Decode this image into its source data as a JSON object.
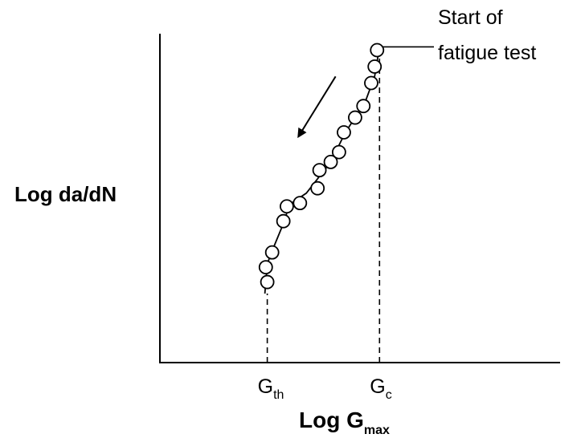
{
  "chart_data": {
    "type": "scatter",
    "ylabel": "Log da/dN",
    "xlabel": {
      "base": "Log G",
      "sub": "max"
    },
    "x_ticks": [
      {
        "base": "G",
        "sub": "th",
        "x": 2.2
      },
      {
        "base": "G",
        "sub": "c",
        "x": 4.5
      }
    ],
    "annotation": {
      "lines": [
        "Start of",
        "fatigue test"
      ],
      "points_to": [
        4.5,
        9.6
      ]
    },
    "arrow": {
      "from": [
        3.6,
        8.7
      ],
      "to": [
        2.85,
        6.9
      ]
    },
    "xlim": [
      0,
      8.2
    ],
    "ylim": [
      0,
      10
    ],
    "points": [
      {
        "x": 2.2,
        "y": 2.45
      },
      {
        "x": 2.17,
        "y": 2.9
      },
      {
        "x": 2.3,
        "y": 3.35
      },
      {
        "x": 2.53,
        "y": 4.3
      },
      {
        "x": 2.6,
        "y": 4.75
      },
      {
        "x": 2.87,
        "y": 4.85
      },
      {
        "x": 3.23,
        "y": 5.3
      },
      {
        "x": 3.27,
        "y": 5.85
      },
      {
        "x": 3.5,
        "y": 6.1
      },
      {
        "x": 3.67,
        "y": 6.4
      },
      {
        "x": 3.77,
        "y": 7.0
      },
      {
        "x": 4.0,
        "y": 7.45
      },
      {
        "x": 4.17,
        "y": 7.8
      },
      {
        "x": 4.33,
        "y": 8.5
      },
      {
        "x": 4.4,
        "y": 9.0
      },
      {
        "x": 4.45,
        "y": 9.5
      }
    ],
    "fit_curve": [
      [
        2.15,
        2.1
      ],
      [
        2.2,
        3.0
      ],
      [
        2.3,
        3.4
      ],
      [
        2.55,
        4.3
      ],
      [
        2.65,
        4.8
      ],
      [
        3.0,
        5.15
      ],
      [
        3.5,
        6.1
      ],
      [
        3.8,
        7.0
      ],
      [
        4.2,
        7.9
      ],
      [
        4.4,
        8.7
      ],
      [
        4.5,
        9.6
      ]
    ],
    "threshold_x": 2.2,
    "critical_x": 4.5,
    "grid": false,
    "legend": "none"
  }
}
